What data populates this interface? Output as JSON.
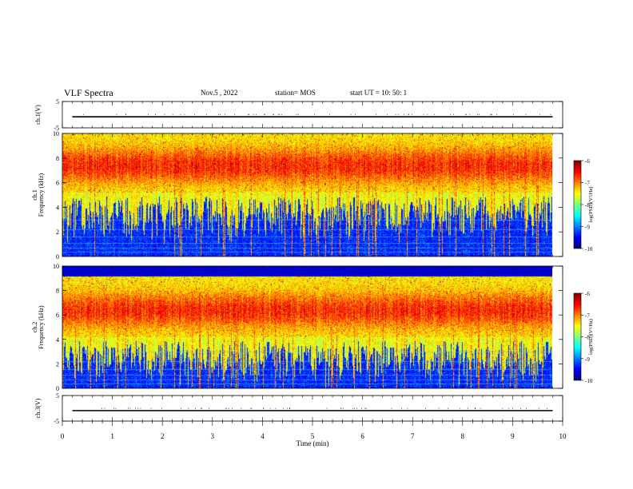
{
  "header": {
    "title": "VLF Spectra",
    "date": "Nov.5 , 2022",
    "station": "station= MOS",
    "start": "start UT = 10: 50: 1"
  },
  "chart_data": [
    {
      "type": "line",
      "panel": "ch1-voltage",
      "ylabel": "ch.1(V)",
      "ylim": [
        -5,
        5
      ],
      "yticks": [
        5,
        -5
      ],
      "xlim": [
        0,
        10
      ],
      "series": [
        {
          "x": [
            0.2,
            9.8
          ],
          "values": [
            -0.8,
            -0.8
          ]
        }
      ]
    },
    {
      "type": "heatmap",
      "panel": "ch1-spectrogram",
      "ylabel": "ch.1\nFrequency (kHz)",
      "ylim": [
        0,
        10
      ],
      "yticks": [
        0,
        2,
        4,
        6,
        8,
        10
      ],
      "xlim": [
        0,
        9.8
      ],
      "band_center_khz": 7.4,
      "colorbar": {
        "label": "log(PSD)(V²/Hz)",
        "ticks": [
          -6,
          -7,
          -8,
          -9,
          -10
        ],
        "range": [
          -10,
          -6
        ]
      }
    },
    {
      "type": "heatmap",
      "panel": "ch2-spectrogram",
      "ylabel": "ch.2\nFrequency (kHz)",
      "ylim": [
        0,
        10
      ],
      "yticks": [
        0,
        2,
        4,
        6,
        8,
        10
      ],
      "xlim": [
        0,
        9.8
      ],
      "band_center_khz": 6.4,
      "colorbar": {
        "label": "log(PSD)(V²/Hz)",
        "ticks": [
          -6,
          -7,
          -8,
          -9,
          -10
        ],
        "range": [
          -10,
          -6
        ]
      }
    },
    {
      "type": "line",
      "panel": "ch3-voltage",
      "ylabel": "ch.3(V)",
      "ylim": [
        -5,
        5
      ],
      "yticks": [
        5,
        -5
      ],
      "xlim": [
        0,
        10
      ],
      "series": [
        {
          "x": [
            0.2,
            9.8
          ],
          "values": [
            -0.9,
            -0.9
          ]
        }
      ]
    }
  ],
  "xaxis": {
    "label": "Time (min)",
    "ticks": [
      0,
      1,
      2,
      3,
      4,
      5,
      6,
      7,
      8,
      9,
      10
    ],
    "range": [
      0,
      10
    ]
  }
}
